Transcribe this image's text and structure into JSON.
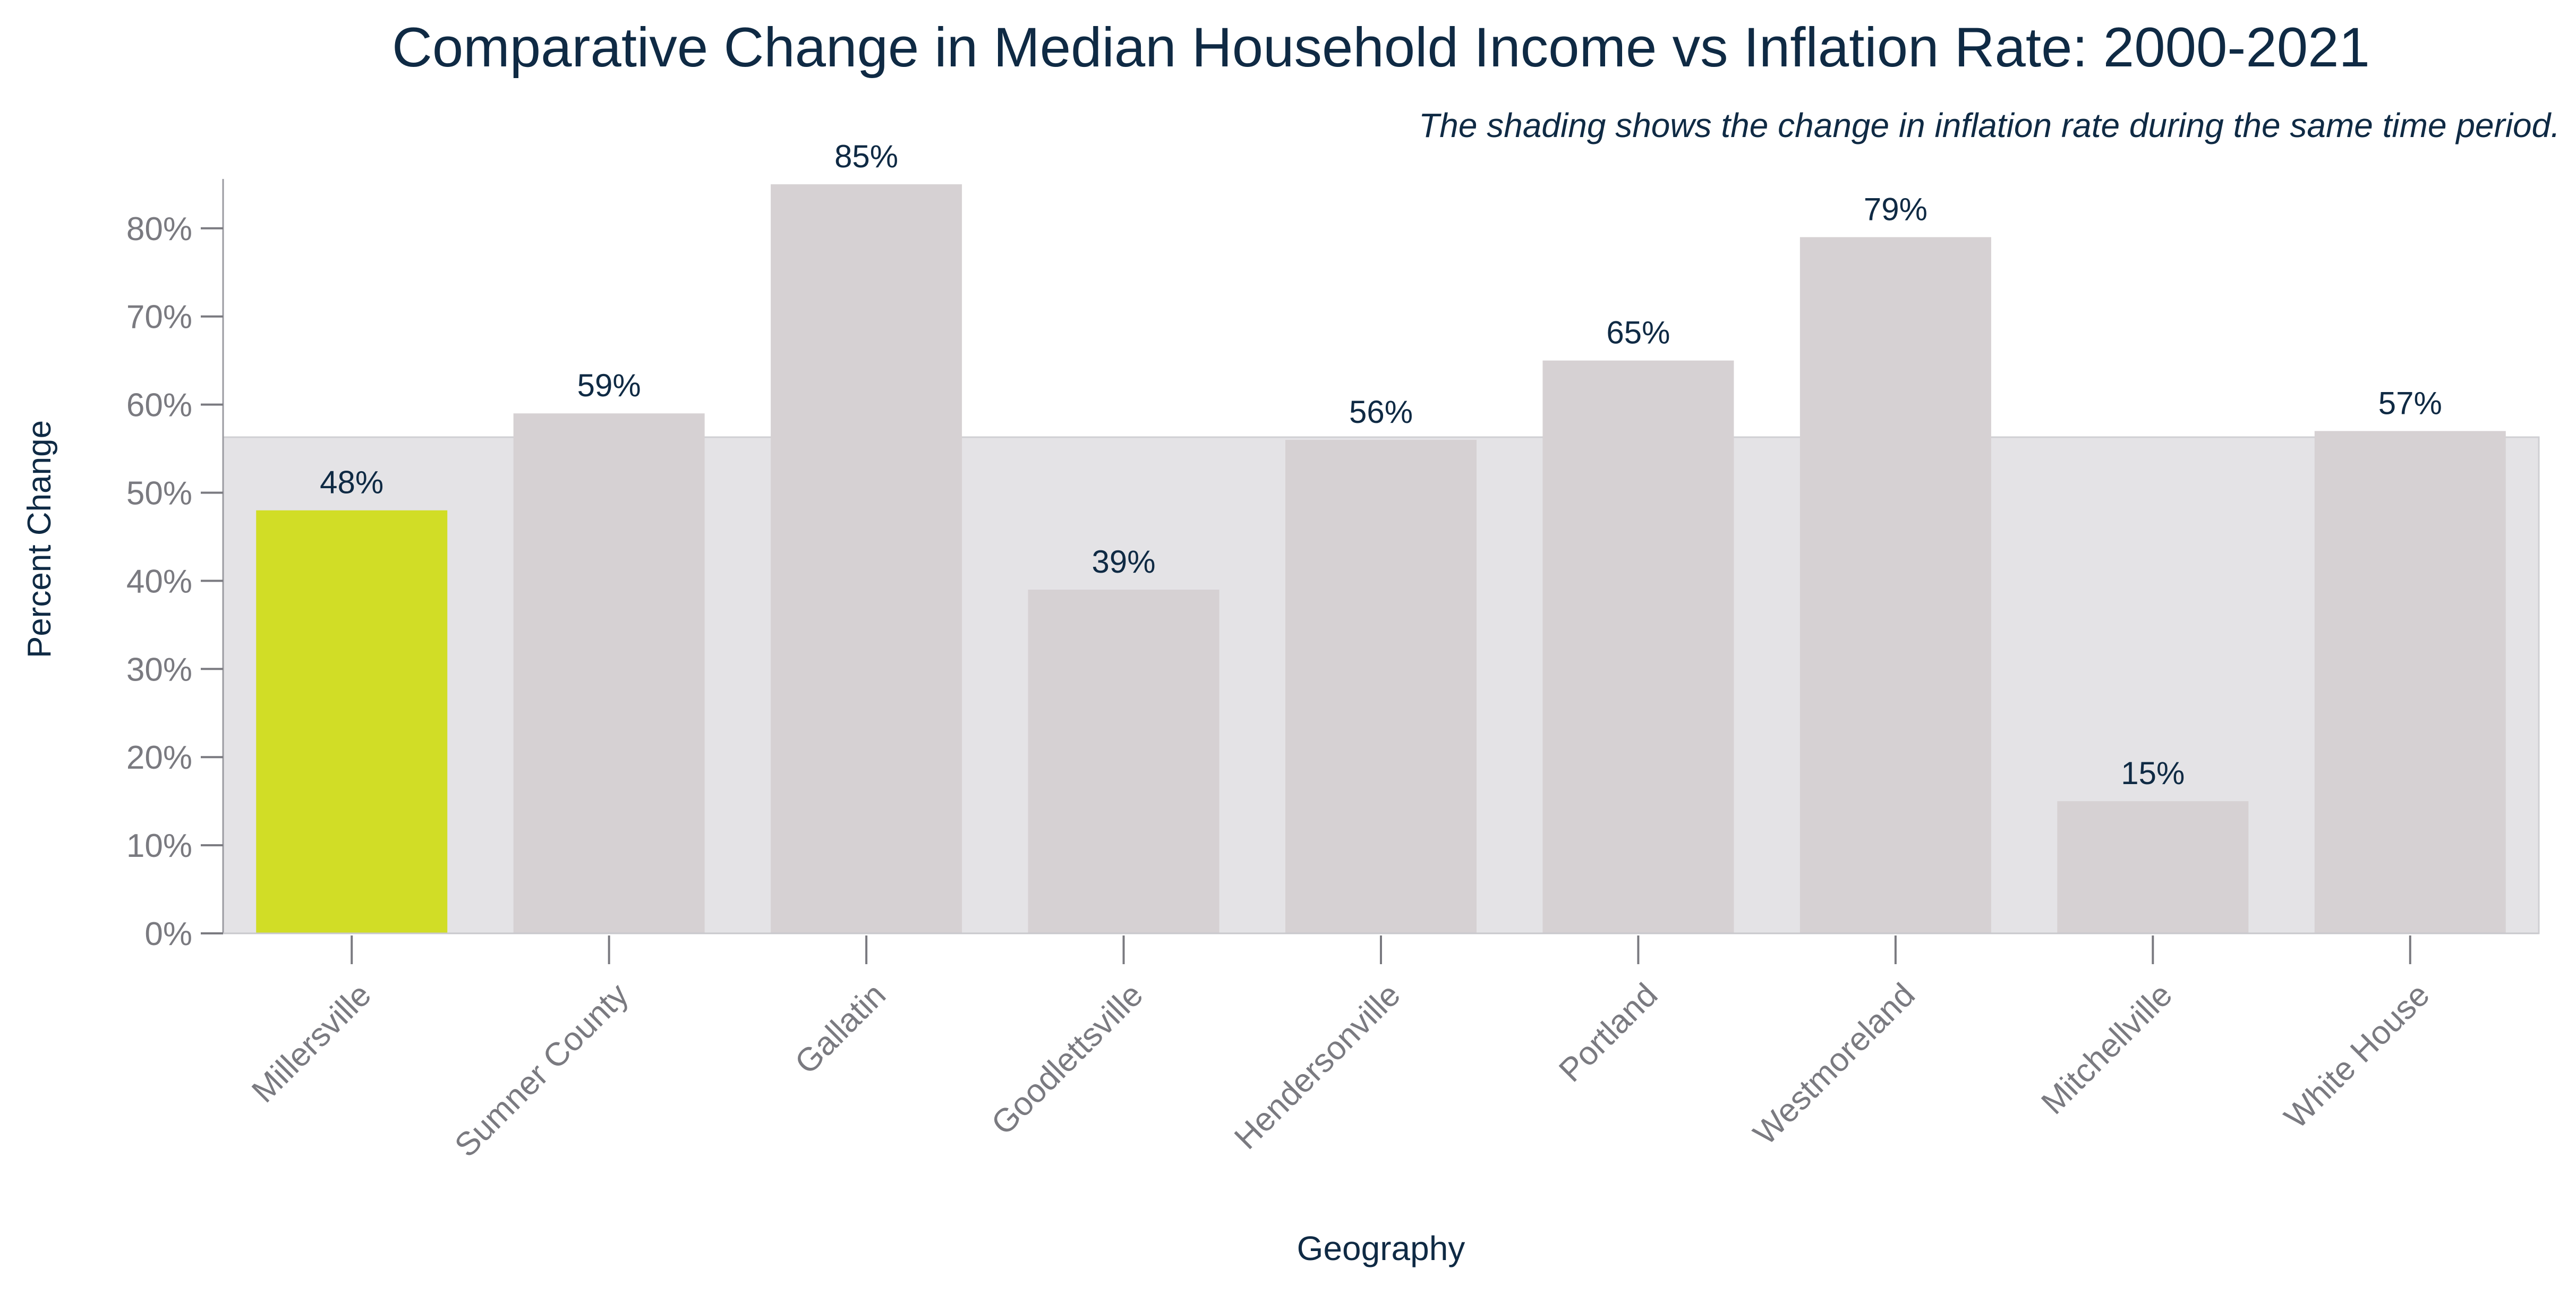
{
  "chart_data": {
    "type": "bar",
    "title": "Comparative Change in Median Household Income vs Inflation Rate: 2000-2021",
    "subtitle": "The shading shows the change in inflation rate during the same time period.",
    "xlabel": "Geography",
    "ylabel": "Percent Change",
    "categories": [
      "Millersville",
      "Sumner County",
      "Gallatin",
      "Goodlettsville",
      "Hendersonville",
      "Portland",
      "Westmoreland",
      "Mitchellville",
      "White House"
    ],
    "values": [
      48,
      59,
      85,
      39,
      56,
      65,
      79,
      15,
      57
    ],
    "data_labels": [
      "48%",
      "59%",
      "85%",
      "39%",
      "56%",
      "65%",
      "79%",
      "15%",
      "57%"
    ],
    "ylim": [
      0,
      85
    ],
    "yticks": [
      0,
      10,
      20,
      30,
      40,
      50,
      60,
      70,
      80
    ],
    "ytick_labels": [
      "0%",
      "10%",
      "20%",
      "30%",
      "40%",
      "50%",
      "60%",
      "70%",
      "80%"
    ],
    "inflation_shading_value": 56.3,
    "highlight_index": 0,
    "colors": {
      "highlight_bar": "#d1dd26",
      "bar": "#d6d1d3",
      "shading": "#e4e3e6",
      "text": "#0f2a44",
      "tick": "#7a7a80"
    },
    "grid": false,
    "legend": "none"
  }
}
